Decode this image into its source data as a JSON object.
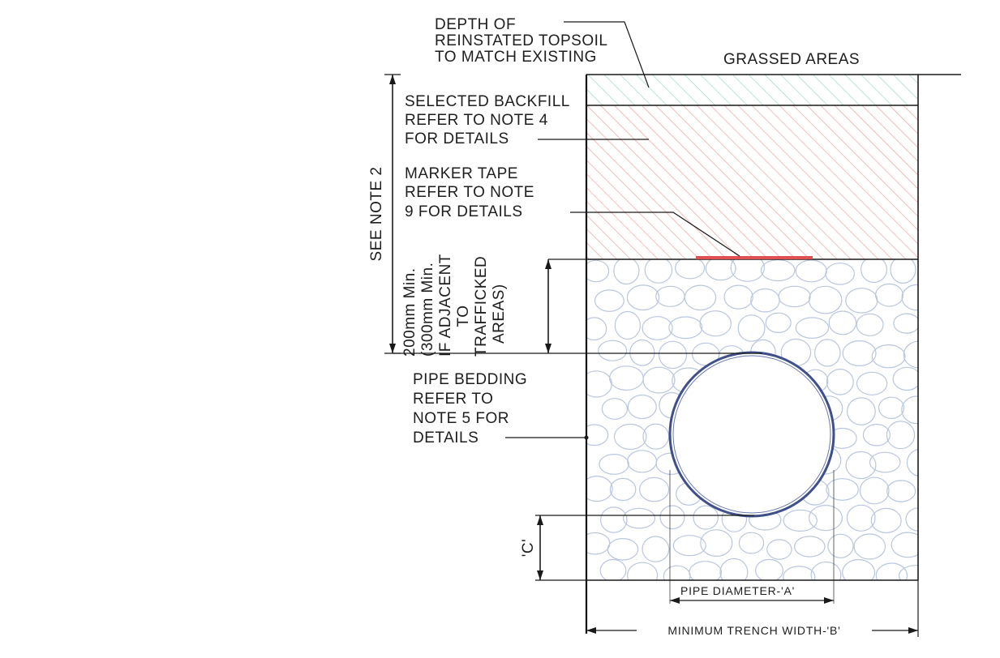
{
  "labels": {
    "topsoil_line1": "DEPTH OF",
    "topsoil_line2": "REINSTATED TOPSOIL",
    "topsoil_line3": "TO MATCH EXISTING",
    "grassed": "GRASSED AREAS",
    "backfill_line1": "SELECTED BACKFILL",
    "backfill_line2": "REFER TO NOTE 4",
    "backfill_line3": "FOR DETAILS",
    "marker_line1": "MARKER TAPE",
    "marker_line2": "REFER TO NOTE",
    "marker_line3": "9 FOR DETAILS",
    "see_note": "SEE NOTE 2",
    "cover_line1": "200mm Min.",
    "cover_line2": "(300mm Min.",
    "cover_line3": "IF ADJACENT",
    "cover_line4": "TO",
    "cover_line5": "TRAFFICKED",
    "cover_line6": "AREAS)",
    "bedding_line1": "PIPE BEDDING",
    "bedding_line2": "REFER TO",
    "bedding_line3": "NOTE 5 FOR",
    "bedding_line4": "DETAILS",
    "dim_c": "'C'",
    "pipe_diameter": "PIPE DIAMETER-'A'",
    "trench_width": "MINIMUM TRENCH WIDTH-'B'"
  },
  "colors": {
    "grass_hatch": "#9fd8c0",
    "backfill_hatch": "#f2a5a5",
    "marker_tape": "#e05050",
    "pipe": "#3f4f8a",
    "bedding_stone": "#b9c6de",
    "line": "#1a1a1a"
  }
}
